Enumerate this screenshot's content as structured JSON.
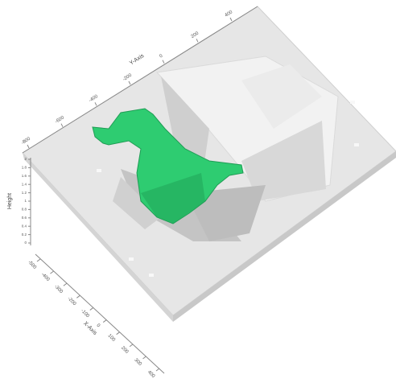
{
  "chart_data": {
    "type": "surface3d",
    "x_label": "X-Axis",
    "y_label": "Y-Axis",
    "z_label": "Height",
    "xlim": [
      -500,
      400
    ],
    "xticks": [
      -500,
      -400,
      -300,
      -200,
      -100,
      0,
      100,
      200,
      300,
      400
    ],
    "ylim": [
      -800,
      400
    ],
    "yticks": [
      -800,
      -600,
      -400,
      -200,
      0,
      200,
      400
    ],
    "zlim": [
      0,
      2
    ],
    "zticks": [
      0,
      0.2,
      0.4,
      0.6,
      0.8,
      1,
      1.2,
      1.4,
      1.6,
      1.8,
      2
    ],
    "color": "#2ecc71"
  }
}
